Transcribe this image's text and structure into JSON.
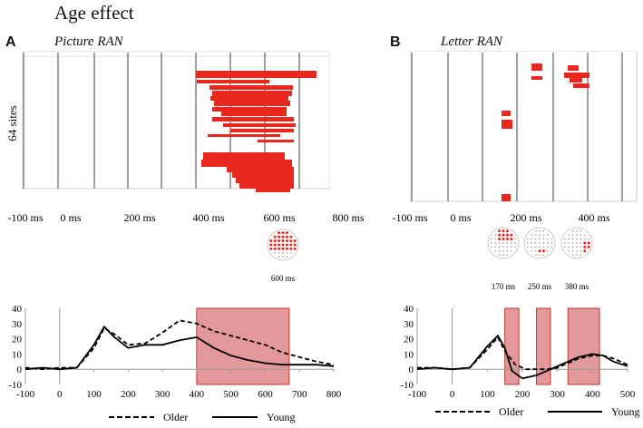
{
  "figure_title": "Age effect",
  "panels": {
    "a": {
      "letter": "A",
      "subtitle": "Picture RAN",
      "ylabel": "64 sites",
      "time_ticks": [
        "-100 ms",
        "0 ms",
        "200 ms",
        "400 ms",
        "600 ms",
        "800 ms"
      ],
      "topo_labels": [
        "600 ms"
      ]
    },
    "b": {
      "letter": "B",
      "subtitle": "Letter RAN",
      "time_ticks": [
        "-100 ms",
        "0 ms",
        "200 ms",
        "400 ms"
      ],
      "topo_labels": [
        "170 ms",
        "250 ms",
        "380 ms"
      ]
    }
  },
  "colors": {
    "significance": "#e8281e",
    "highlight": "#d9777a",
    "highlight_stroke": "#c0392b"
  },
  "legend": {
    "older": "Older",
    "young": "Young"
  },
  "chart_data": [
    {
      "type": "line",
      "panel": "A",
      "x_ticks": [
        "-100",
        "0",
        "100",
        "200",
        "300",
        "400",
        "500",
        "600",
        "700",
        "800"
      ],
      "y_ticks": [
        "40",
        "30",
        "20",
        "10",
        "0",
        "-10"
      ],
      "xlim": [
        -100,
        800
      ],
      "ylim": [
        -10,
        40
      ],
      "highlight_windows": [
        [
          400,
          670
        ]
      ],
      "series": [
        {
          "name": "Older",
          "style": "dashed",
          "x": [
            -100,
            -50,
            0,
            50,
            100,
            130,
            160,
            200,
            250,
            300,
            350,
            400,
            450,
            500,
            550,
            600,
            650,
            700,
            750,
            800
          ],
          "y": [
            1,
            0,
            1,
            1,
            14,
            27,
            23,
            16,
            17,
            24,
            32,
            30,
            25,
            22,
            19,
            16,
            11,
            8,
            5,
            3
          ]
        },
        {
          "name": "Young",
          "style": "solid",
          "x": [
            -100,
            -50,
            0,
            50,
            100,
            130,
            160,
            200,
            250,
            300,
            350,
            400,
            450,
            500,
            550,
            600,
            650,
            700,
            750,
            800
          ],
          "y": [
            0,
            1,
            0,
            1,
            16,
            28,
            21,
            14,
            16,
            16,
            19,
            21,
            14,
            9,
            6,
            4,
            3,
            3,
            3,
            2
          ]
        }
      ]
    },
    {
      "type": "line",
      "panel": "B",
      "x_ticks": [
        "-100",
        "0",
        "100",
        "200",
        "300",
        "400",
        "500"
      ],
      "y_ticks": [
        "40",
        "30",
        "20",
        "10",
        "0",
        "-10"
      ],
      "xlim": [
        -100,
        500
      ],
      "ylim": [
        -10,
        40
      ],
      "highlight_windows": [
        [
          150,
          190
        ],
        [
          240,
          280
        ],
        [
          330,
          420
        ]
      ],
      "series": [
        {
          "name": "Older",
          "style": "dashed",
          "x": [
            -100,
            -50,
            0,
            50,
            100,
            130,
            150,
            180,
            210,
            240,
            270,
            300,
            330,
            360,
            400,
            430,
            460,
            500
          ],
          "y": [
            1,
            1,
            0,
            1,
            13,
            21,
            12,
            3,
            0,
            0,
            0,
            1,
            4,
            7,
            9,
            9,
            7,
            3
          ]
        },
        {
          "name": "Young",
          "style": "solid",
          "x": [
            -100,
            -50,
            0,
            50,
            100,
            130,
            150,
            170,
            200,
            240,
            270,
            300,
            330,
            360,
            400,
            430,
            460,
            500
          ],
          "y": [
            0,
            1,
            0,
            1,
            15,
            22,
            14,
            -1,
            -6,
            -4,
            -1,
            2,
            5,
            8,
            10,
            9,
            5,
            2
          ]
        }
      ]
    }
  ]
}
